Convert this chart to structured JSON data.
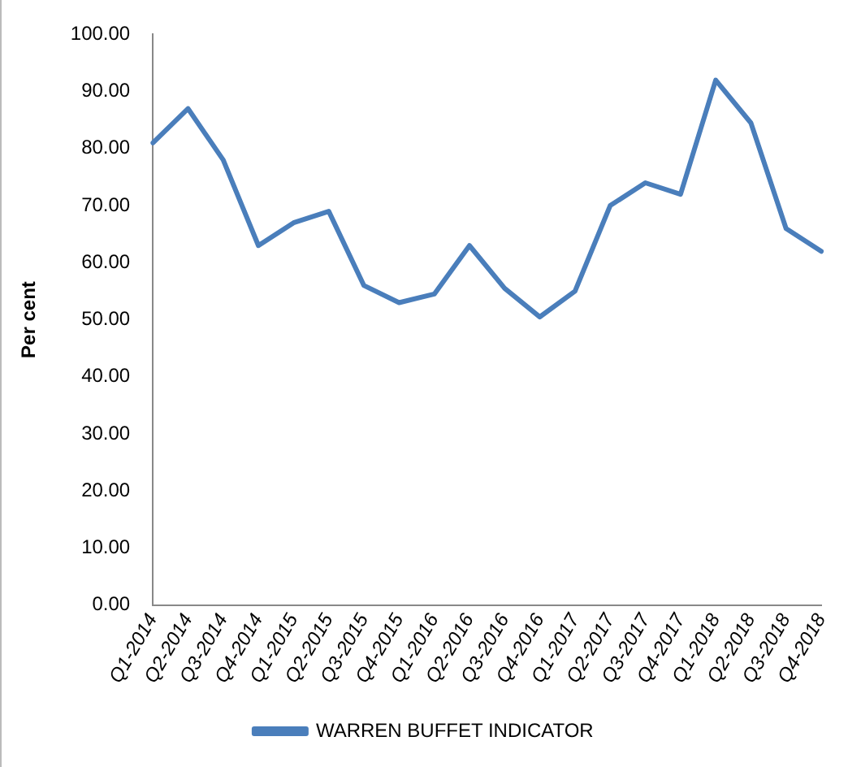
{
  "chart_data": {
    "type": "line",
    "ylabel": "Per cent",
    "categories": [
      "Q1-2014",
      "Q2-2014",
      "Q3-2014",
      "Q4-2014",
      "Q1-2015",
      "Q2-2015",
      "Q3-2015",
      "Q4-2015",
      "Q1-2016",
      "Q2-2016",
      "Q3-2016",
      "Q4-2016",
      "Q1-2017",
      "Q2-2017",
      "Q3-2017",
      "Q4-2017",
      "Q1-2018",
      "Q2-2018",
      "Q3-2018",
      "Q4-2018"
    ],
    "series": [
      {
        "name": "WARREN BUFFET INDICATOR",
        "color": "#4a7ebb",
        "values": [
          81,
          87,
          78,
          63,
          67,
          69,
          56,
          53,
          54.5,
          63,
          55.5,
          50.5,
          55,
          70,
          74,
          72,
          92,
          84.5,
          66,
          62
        ]
      }
    ],
    "ylim": [
      0,
      100
    ],
    "yticks": [
      {
        "value": 0,
        "label": "0.00"
      },
      {
        "value": 10,
        "label": "10.00"
      },
      {
        "value": 20,
        "label": "20.00"
      },
      {
        "value": 30,
        "label": "30.00"
      },
      {
        "value": 40,
        "label": "40.00"
      },
      {
        "value": 50,
        "label": "50.00"
      },
      {
        "value": 60,
        "label": "60.00"
      },
      {
        "value": 70,
        "label": "70.00"
      },
      {
        "value": 80,
        "label": "80.00"
      },
      {
        "value": 90,
        "label": "90.00"
      },
      {
        "value": 100,
        "label": "100.00"
      }
    ],
    "grid": false,
    "legend": "bottom",
    "marker": "none",
    "line_style": "solid"
  }
}
